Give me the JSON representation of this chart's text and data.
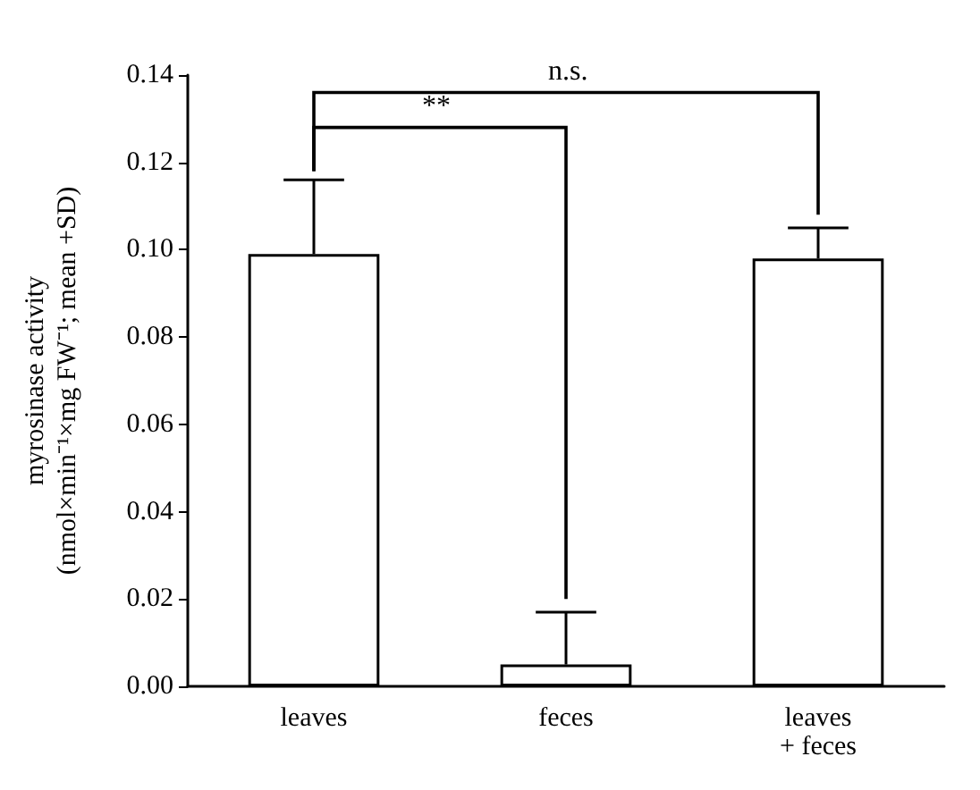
{
  "chart_data": {
    "type": "bar",
    "ylabel": "myrosinase activity\n(nmol×min⁻¹×mg FW⁻¹; mean +SD)",
    "categories": [
      "leaves",
      "feces",
      "leaves\n+ feces"
    ],
    "series": [
      {
        "color": "#ffffff",
        "values": [
          0.099,
          0.005,
          0.098
        ],
        "errors": [
          [
            0.099,
            0.116
          ],
          [
            0.005,
            0.017
          ],
          [
            0.098,
            0.105
          ]
        ]
      }
    ],
    "ylim": [
      0,
      0.14
    ],
    "yticks": [
      {
        "value": 0,
        "label": "0.00"
      },
      {
        "value": 0.02,
        "label": "0.02"
      },
      {
        "value": 0.04,
        "label": "0.04"
      },
      {
        "value": 0.06,
        "label": "0.06"
      },
      {
        "value": 0.08,
        "label": "0.08"
      },
      {
        "value": 0.1,
        "label": "0.10"
      },
      {
        "value": 0.12,
        "label": "0.12"
      },
      {
        "value": 0.14,
        "label": "0.14"
      }
    ],
    "annotations": [
      "**",
      "n.s."
    ],
    "grid": false
  }
}
